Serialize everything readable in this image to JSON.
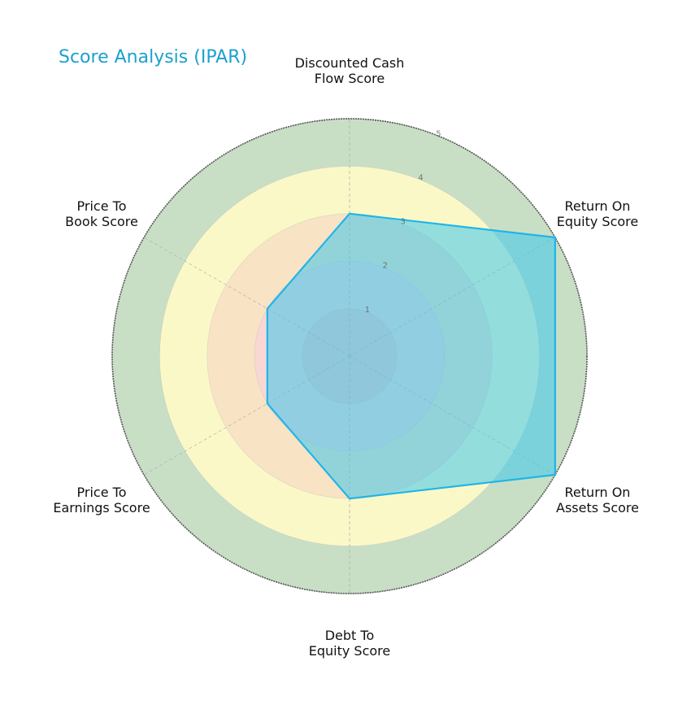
{
  "chart_data": {
    "type": "radar",
    "title": "Score Analysis (IPAR)",
    "categories": [
      "Discounted Cash Flow Score",
      "Return On Equity Score",
      "Return On Assets Score",
      "Debt To Equity Score",
      "Price To Earnings Score",
      "Price To Book Score"
    ],
    "category_labels": [
      [
        "Discounted Cash",
        "Flow Score"
      ],
      [
        "Return On",
        "Equity Score"
      ],
      [
        "Return On",
        "Assets Score"
      ],
      [
        "Debt To",
        "Equity Score"
      ],
      [
        "Price To",
        "Earnings Score"
      ],
      [
        "Price To",
        "Book Score"
      ]
    ],
    "series": [
      {
        "name": "IPAR",
        "values": [
          3,
          5,
          5,
          3,
          2,
          2
        ]
      }
    ],
    "rlim": [
      0,
      5
    ],
    "rticks": [
      1,
      2,
      3,
      4,
      5
    ],
    "bands": [
      {
        "from": 0,
        "to": 1,
        "color": "#f4c7c3"
      },
      {
        "from": 1,
        "to": 2,
        "color": "#f8d7d5"
      },
      {
        "from": 2,
        "to": 3,
        "color": "#f8e3c4"
      },
      {
        "from": 3,
        "to": 4,
        "color": "#fbf8c8"
      },
      {
        "from": 4,
        "to": 5,
        "color": "#c8dfc6"
      }
    ],
    "colors": {
      "title": "#1ba1d0",
      "series_line": "#1fb5e8",
      "series_fill": "#3ec6ec"
    }
  }
}
